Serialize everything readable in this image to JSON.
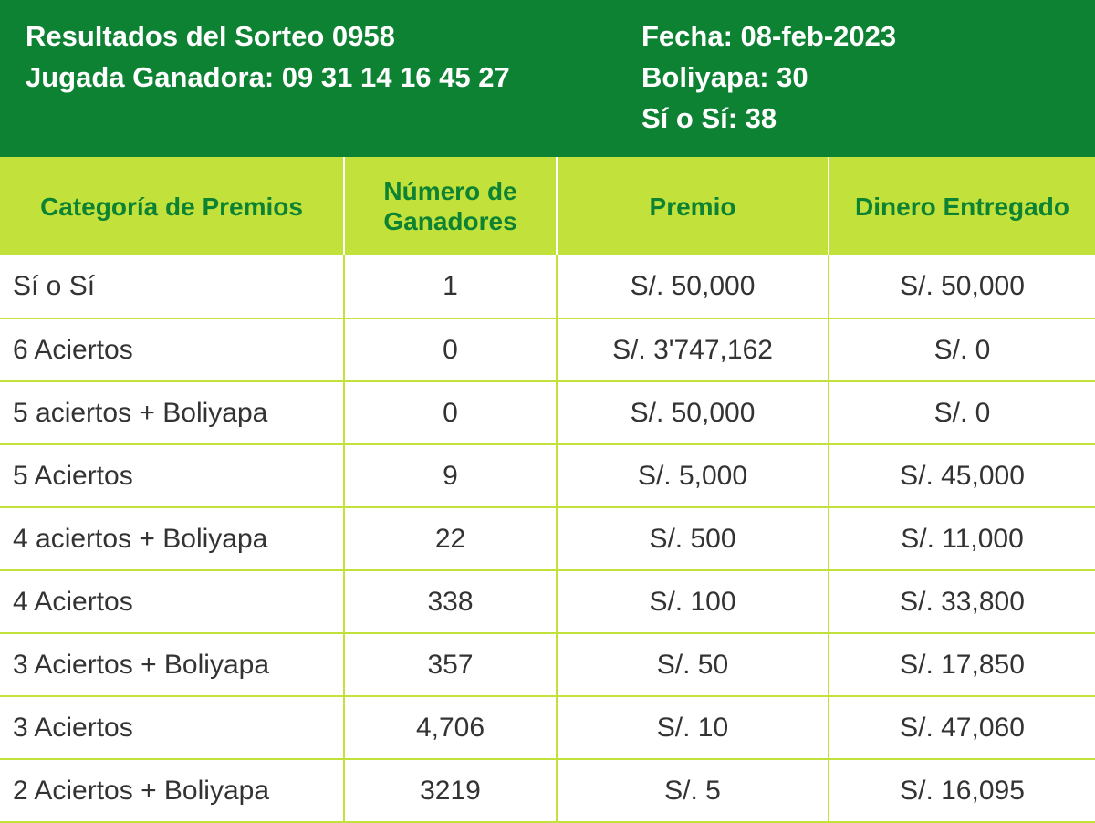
{
  "header": {
    "sorteo": "Resultados del Sorteo 0958",
    "jugada": "Jugada Ganadora: 09 31 14 16 45 27",
    "fecha": "Fecha: 08-feb-2023",
    "boliyapa": "Boliyapa: 30",
    "si_o_si": "Sí o Sí: 38"
  },
  "colors": {
    "header_bg": "#0d8233",
    "column_header_bg": "#c2e23b",
    "column_header_text": "#0d8233",
    "body_text": "#333333"
  },
  "table": {
    "columns": [
      "Categoría de Premios",
      "Número de Ganadores",
      "Premio",
      "Dinero Entregado"
    ],
    "rows": [
      {
        "categoria": "Sí o Sí",
        "ganadores": "1",
        "premio": "S/. 50,000",
        "entregado": "S/. 50,000"
      },
      {
        "categoria": "6 Aciertos",
        "ganadores": "0",
        "premio": "S/. 3'747,162",
        "entregado": "S/. 0"
      },
      {
        "categoria": "5 aciertos + Boliyapa",
        "ganadores": "0",
        "premio": "S/. 50,000",
        "entregado": "S/. 0"
      },
      {
        "categoria": "5 Aciertos",
        "ganadores": "9",
        "premio": "S/. 5,000",
        "entregado": "S/. 45,000"
      },
      {
        "categoria": "4 aciertos + Boliyapa",
        "ganadores": "22",
        "premio": "S/. 500",
        "entregado": "S/. 11,000"
      },
      {
        "categoria": "4 Aciertos",
        "ganadores": "338",
        "premio": "S/. 100",
        "entregado": "S/. 33,800"
      },
      {
        "categoria": "3 Aciertos + Boliyapa",
        "ganadores": "357",
        "premio": "S/. 50",
        "entregado": "S/. 17,850"
      },
      {
        "categoria": "3 Aciertos",
        "ganadores": "4,706",
        "premio": "S/. 10",
        "entregado": "S/. 47,060"
      },
      {
        "categoria": "2 Aciertos + Boliyapa",
        "ganadores": "3219",
        "premio": "S/. 5",
        "entregado": "S/. 16,095"
      }
    ]
  }
}
